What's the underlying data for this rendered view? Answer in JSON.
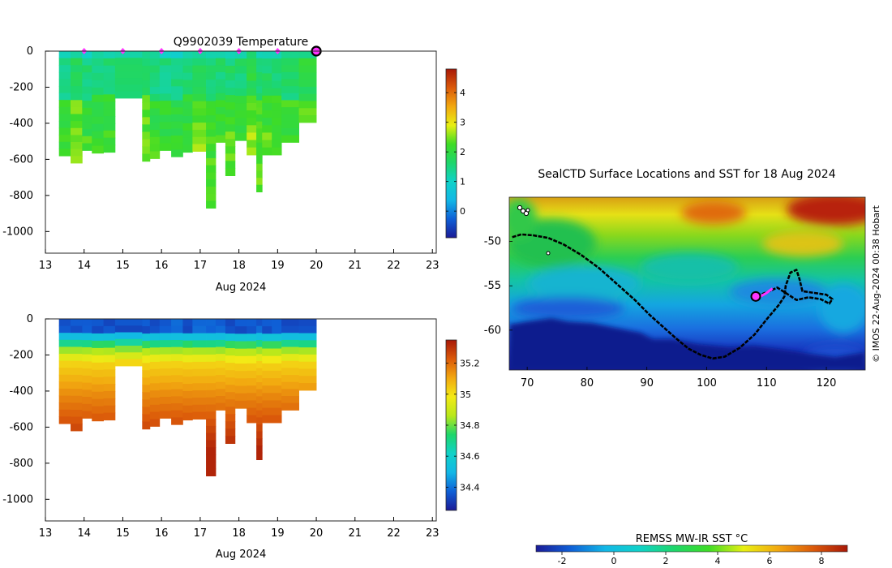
{
  "colors": {
    "temperature_scale": [
      "#1b1b96",
      "#0f5fd6",
      "#12b7e6",
      "#10d2c8",
      "#1ed66a",
      "#3fdc25",
      "#e8ef12",
      "#f2a810",
      "#db5a0a",
      "#a81808"
    ],
    "salinity_scale": [
      "#1b1b96",
      "#0f5fd6",
      "#12b7e6",
      "#10d2c8",
      "#1ed66a",
      "#b9e81a",
      "#f3ea16",
      "#f2a810",
      "#db5a0a",
      "#a81808"
    ],
    "profile_marker": "#ff33ff",
    "track": "#000000"
  },
  "chart_data": [
    {
      "type": "heatmap",
      "id": "temperature_section",
      "title": "Q9902039  Temperature",
      "xlabel": "Aug 2024",
      "x_ticks": [
        "13",
        "14",
        "15",
        "16",
        "17",
        "18",
        "19",
        "20",
        "21",
        "22",
        "23"
      ],
      "y_ticks": [
        "0",
        "-200",
        "-400",
        "-600",
        "-800",
        "-1000"
      ],
      "xlim": [
        13,
        23.1
      ],
      "ylim": [
        -1120,
        0
      ],
      "colorbar": {
        "ticks": [
          "0",
          "1",
          "2",
          "3",
          "4"
        ],
        "range": [
          -0.9,
          4.8
        ]
      },
      "profile_markers": [
        14,
        15,
        16,
        17,
        18,
        19
      ],
      "current_marker": 20,
      "profiles": [
        {
          "t0": 13.35,
          "t1": 13.65,
          "depth": 580
        },
        {
          "t0": 13.65,
          "t1": 13.95,
          "depth": 620
        },
        {
          "t0": 13.95,
          "t1": 14.2,
          "depth": 550
        },
        {
          "t0": 14.2,
          "t1": 14.5,
          "depth": 565
        },
        {
          "t0": 14.5,
          "t1": 14.8,
          "depth": 560
        },
        {
          "t0": 14.8,
          "t1": 15.5,
          "depth": 260
        },
        {
          "t0": 15.5,
          "t1": 15.7,
          "depth": 610
        },
        {
          "t0": 15.7,
          "t1": 15.95,
          "depth": 595
        },
        {
          "t0": 15.95,
          "t1": 16.25,
          "depth": 550
        },
        {
          "t0": 16.25,
          "t1": 16.55,
          "depth": 585
        },
        {
          "t0": 16.55,
          "t1": 16.8,
          "depth": 560
        },
        {
          "t0": 16.8,
          "t1": 17.15,
          "depth": 555
        },
        {
          "t0": 17.15,
          "t1": 17.4,
          "depth": 870
        },
        {
          "t0": 17.4,
          "t1": 17.65,
          "depth": 505
        },
        {
          "t0": 17.65,
          "t1": 17.9,
          "depth": 690
        },
        {
          "t0": 17.9,
          "t1": 18.2,
          "depth": 495
        },
        {
          "t0": 18.2,
          "t1": 18.45,
          "depth": 575
        },
        {
          "t0": 18.45,
          "t1": 18.6,
          "depth": 780
        },
        {
          "t0": 18.6,
          "t1": 18.85,
          "depth": 575
        },
        {
          "t0": 18.85,
          "t1": 19.1,
          "depth": 575
        },
        {
          "t0": 19.1,
          "t1": 19.55,
          "depth": 505
        },
        {
          "t0": 19.55,
          "t1": 20.0,
          "depth": 395
        }
      ]
    },
    {
      "type": "heatmap",
      "id": "salinity_section",
      "title": "",
      "xlabel": "Aug 2024",
      "x_ticks": [
        "13",
        "14",
        "15",
        "16",
        "17",
        "18",
        "19",
        "20",
        "21",
        "22",
        "23"
      ],
      "y_ticks": [
        "0",
        "-200",
        "-400",
        "-600",
        "-800",
        "-1000"
      ],
      "xlim": [
        13,
        23.1
      ],
      "ylim": [
        -1120,
        0
      ],
      "colorbar": {
        "ticks": [
          "34.4",
          "34.6",
          "34.8",
          "35",
          "35.2"
        ],
        "range": [
          34.25,
          35.35
        ]
      }
    },
    {
      "type": "heatmap",
      "id": "sst_map",
      "title": "SealCTD Surface Locations and SST for 18 Aug 2024",
      "x_ticks": [
        "70",
        "80",
        "90",
        "100",
        "110",
        "120"
      ],
      "y_ticks": [
        "-50",
        "-55",
        "-60"
      ],
      "xlim": [
        67,
        126.5
      ],
      "ylim": [
        -64.5,
        -45
      ],
      "colorbar": {
        "label": "REMSS MW-IR SST °C",
        "ticks": [
          "-2",
          "0",
          "2",
          "4",
          "6",
          "8"
        ],
        "range": [
          -3,
          9
        ]
      },
      "credit": "© IMOS 22-Aug-2024 00:38 Hobart",
      "track_lon": [
        67.5,
        69,
        71,
        73.5,
        76,
        79,
        82,
        85,
        88,
        90.5,
        93,
        95,
        97,
        99,
        101,
        103,
        105.5,
        108,
        110,
        112,
        113,
        113.2,
        114,
        115,
        115.5,
        116,
        118,
        120,
        121,
        120.5,
        119,
        117,
        115,
        113.2,
        111.8,
        110.5,
        109,
        108.2
      ],
      "track_lat": [
        -49.5,
        -49.2,
        -49.3,
        -49.6,
        -50.3,
        -51.5,
        -53,
        -54.8,
        -56.6,
        -58.3,
        -59.8,
        -61,
        -62.1,
        -62.8,
        -63.2,
        -63,
        -62,
        -60.5,
        -58.8,
        -57.2,
        -56.2,
        -55,
        -53.5,
        -53.2,
        -54.2,
        -55.6,
        -55.8,
        -56,
        -56.5,
        -57,
        -56.5,
        -56.3,
        -56.6,
        -55.8,
        -55.2,
        -55.6,
        -56,
        -56.2
      ],
      "recent_lon": [
        108.2,
        109,
        110,
        111
      ],
      "recent_lat": [
        -56.2,
        -56.2,
        -55.8,
        -55.3
      ],
      "current_lon": 108.2,
      "current_lat": -56.2
    }
  ]
}
